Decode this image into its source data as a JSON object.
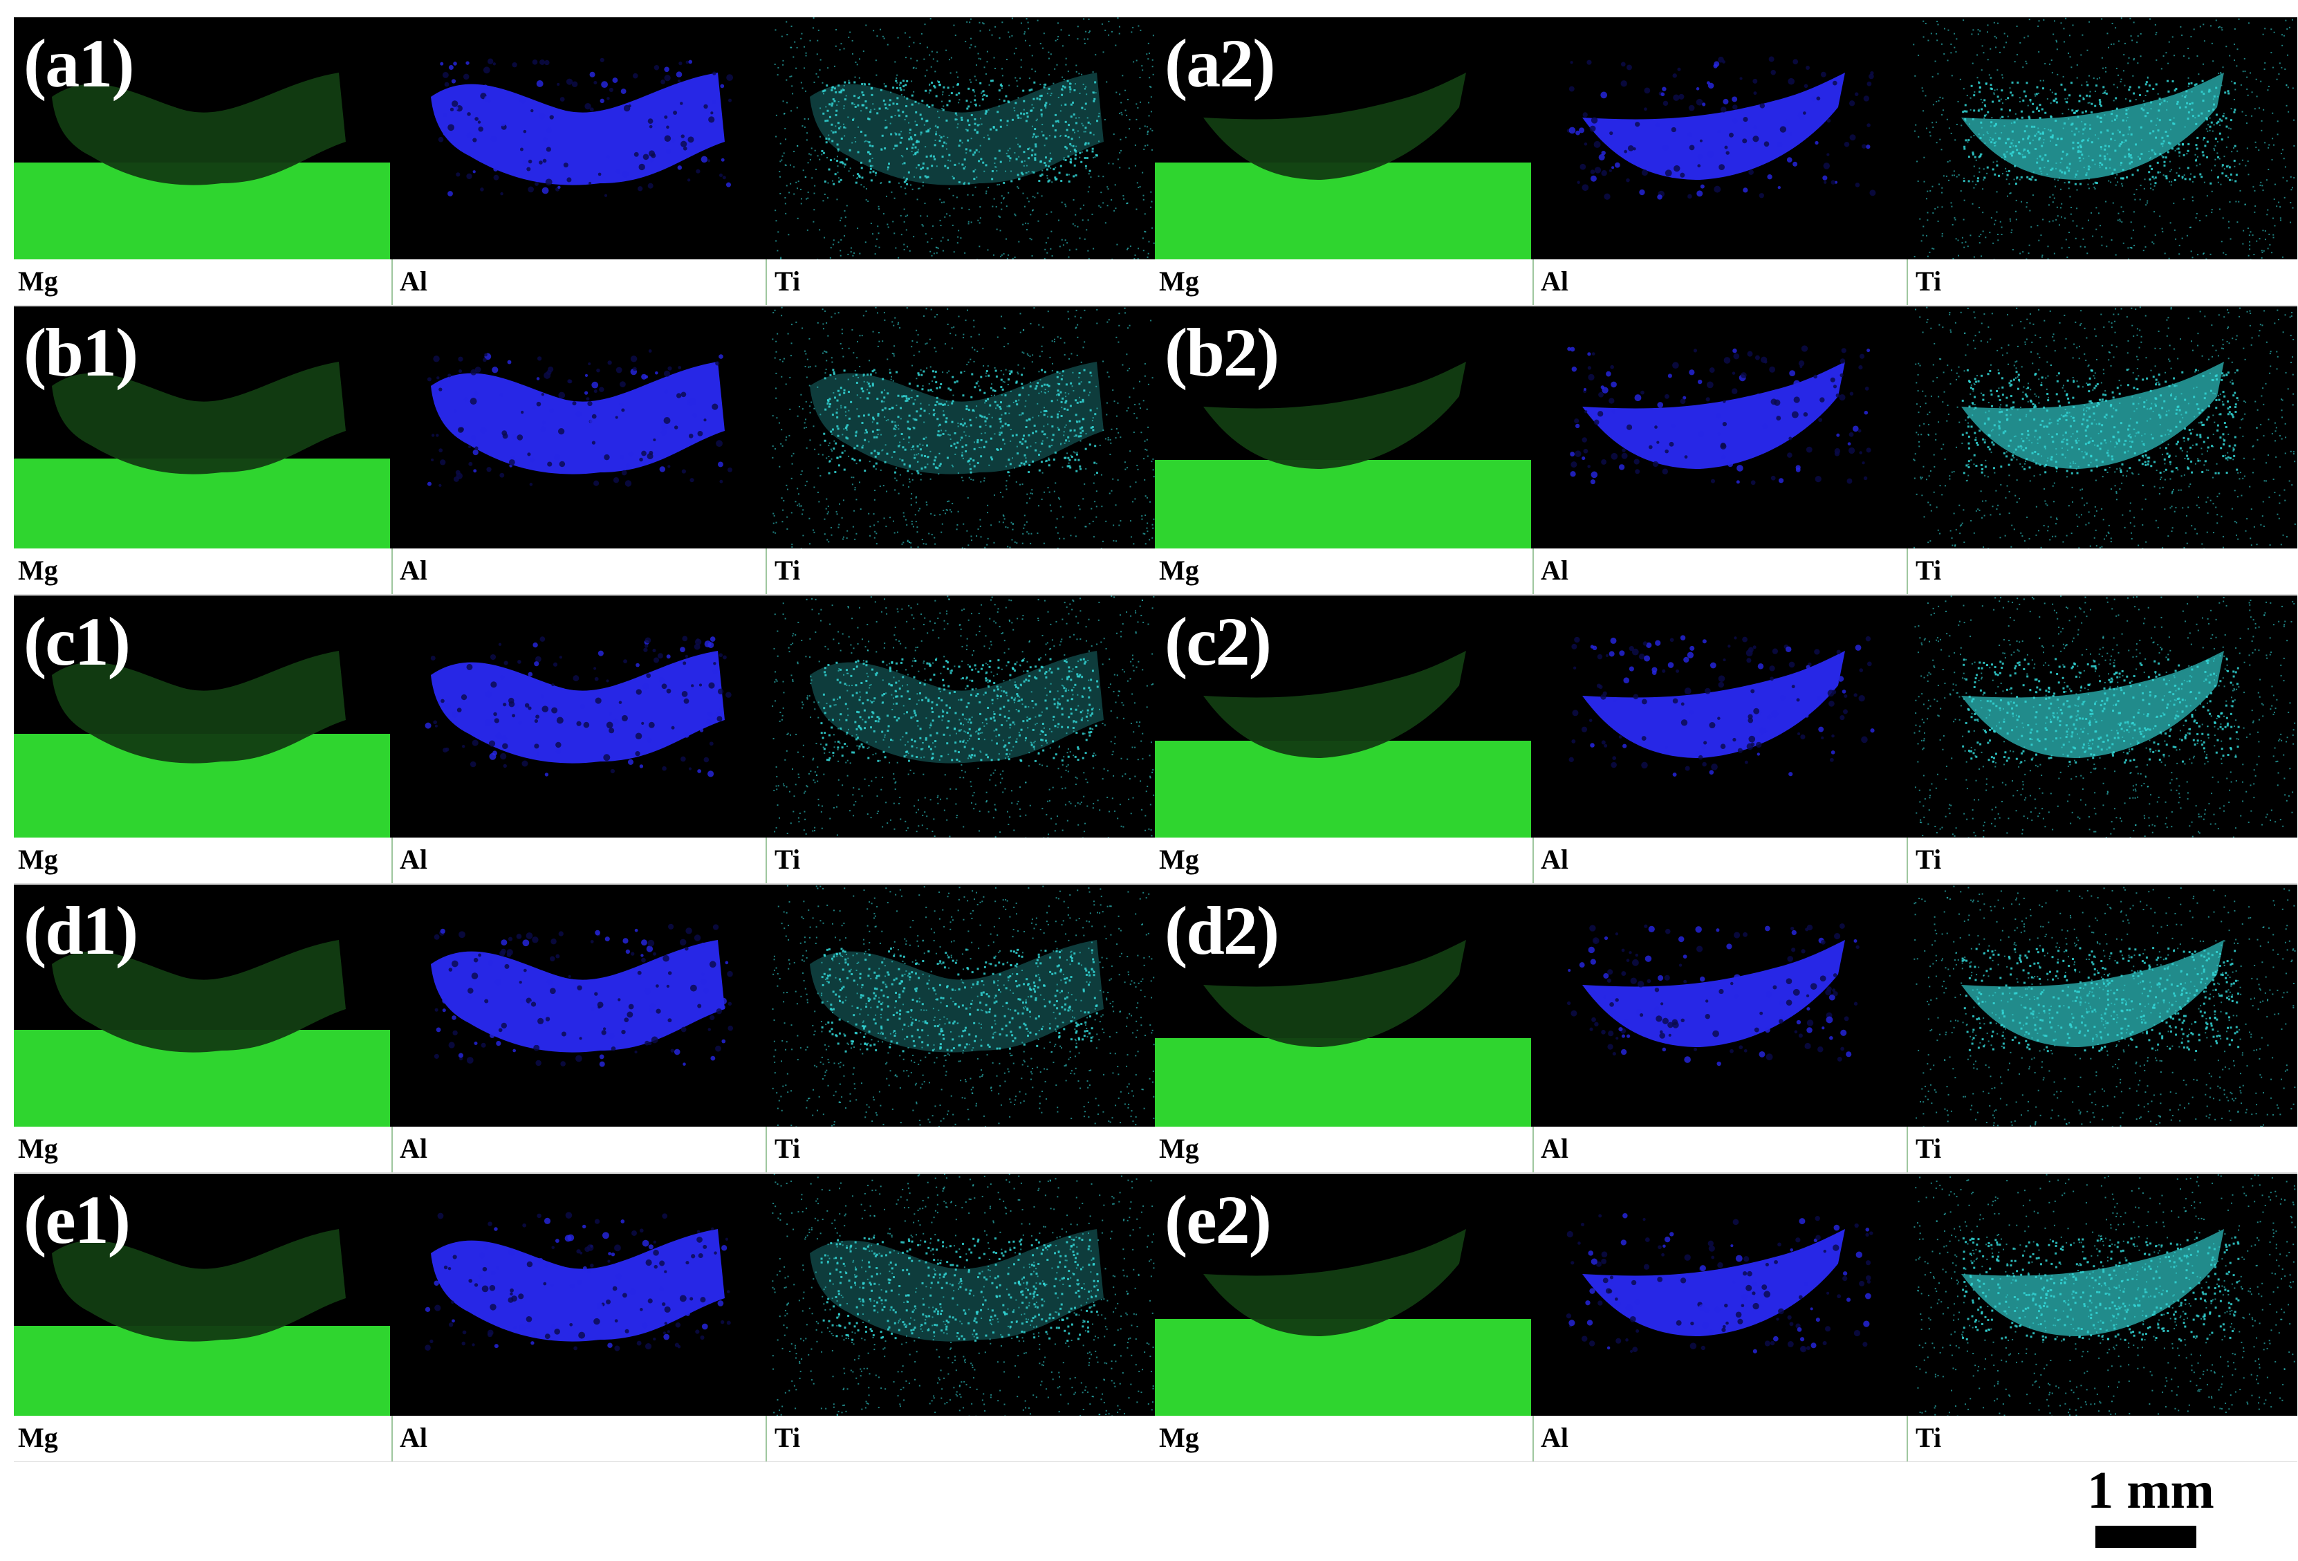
{
  "panels": [
    {
      "label": "(a1)",
      "elements": [
        "Mg",
        "Al",
        "Ti"
      ]
    },
    {
      "label": "(a2)",
      "elements": [
        "Mg",
        "Al",
        "Ti"
      ]
    },
    {
      "label": "(b1)",
      "elements": [
        "Mg",
        "Al",
        "Ti"
      ]
    },
    {
      "label": "(b2)",
      "elements": [
        "Mg",
        "Al",
        "Ti"
      ]
    },
    {
      "label": "(c1)",
      "elements": [
        "Mg",
        "Al",
        "Ti"
      ]
    },
    {
      "label": "(c2)",
      "elements": [
        "Mg",
        "Al",
        "Ti"
      ]
    },
    {
      "label": "(d1)",
      "elements": [
        "Mg",
        "Al",
        "Ti"
      ]
    },
    {
      "label": "(d2)",
      "elements": [
        "Mg",
        "Al",
        "Ti"
      ]
    },
    {
      "label": "(e1)",
      "elements": [
        "Mg",
        "Al",
        "Ti"
      ]
    },
    {
      "label": "(e2)",
      "elements": [
        "Mg",
        "Al",
        "Ti"
      ]
    }
  ],
  "scale_bar": {
    "label": "1 mm"
  },
  "colors": {
    "mg_bright": "#2fd52f",
    "mg_dark": "#123d12",
    "al_blue": "#2727e6",
    "ti_cyan": "#33d6d6",
    "background": "#000000"
  }
}
